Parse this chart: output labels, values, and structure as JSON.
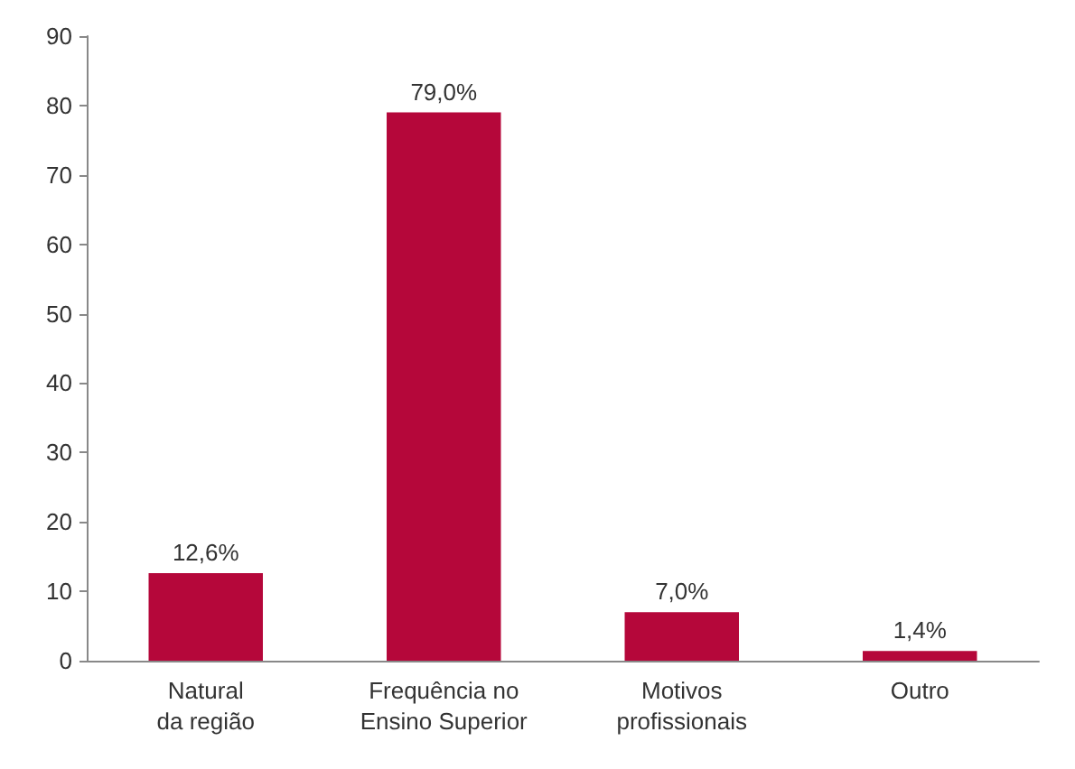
{
  "chart_data": {
    "type": "bar",
    "categories": [
      "Natural\nda região",
      "Frequência no\nEnsino Superior",
      "Motivos\nprofissionais",
      "Outro"
    ],
    "values": [
      12.6,
      79.0,
      7.0,
      1.4
    ],
    "value_labels": [
      "12,6%",
      "79,0%",
      "7,0%",
      "1,4%"
    ],
    "color": "#b5073a",
    "ylim": [
      0,
      90
    ],
    "yticks": [
      0,
      10,
      20,
      30,
      40,
      50,
      60,
      70,
      80,
      90
    ],
    "grid": false
  }
}
